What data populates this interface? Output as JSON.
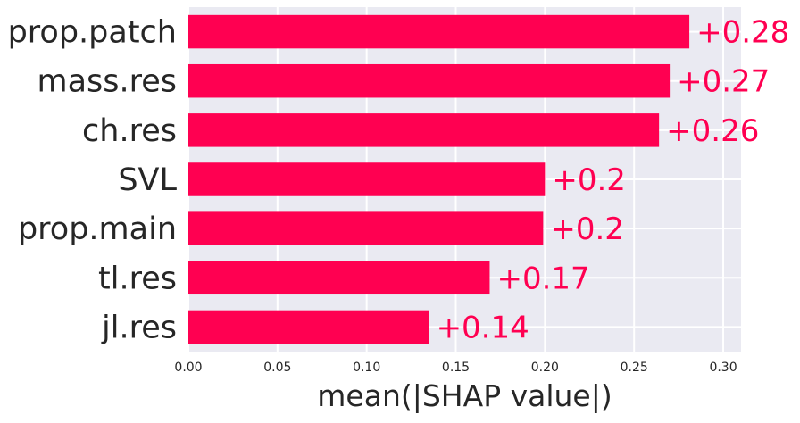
{
  "chart_data": {
    "type": "bar",
    "orientation": "horizontal",
    "title": "",
    "xlabel": "mean(|SHAP value|)",
    "ylabel": "",
    "xlim": [
      0.0,
      0.31
    ],
    "xticks": [
      "0.00",
      "0.05",
      "0.10",
      "0.15",
      "0.20",
      "0.25",
      "0.30"
    ],
    "xtick_values": [
      0.0,
      0.05,
      0.1,
      0.15,
      0.2,
      0.25,
      0.3
    ],
    "grid": true,
    "categories": [
      "prop.patch",
      "mass.res",
      "ch.res",
      "SVL",
      "prop.main",
      "tl.res",
      "jl.res"
    ],
    "values": [
      0.281,
      0.27,
      0.264,
      0.2,
      0.199,
      0.169,
      0.135
    ],
    "data_labels": [
      "+0.28",
      "+0.27",
      "+0.26",
      "+0.2",
      "+0.2",
      "+0.17",
      "+0.14"
    ]
  },
  "colors": {
    "bar": "#ff0051",
    "plot_bg": "#eaeaf2",
    "grid": "#ffffff",
    "text": "#262626",
    "label": "#ff0051"
  }
}
